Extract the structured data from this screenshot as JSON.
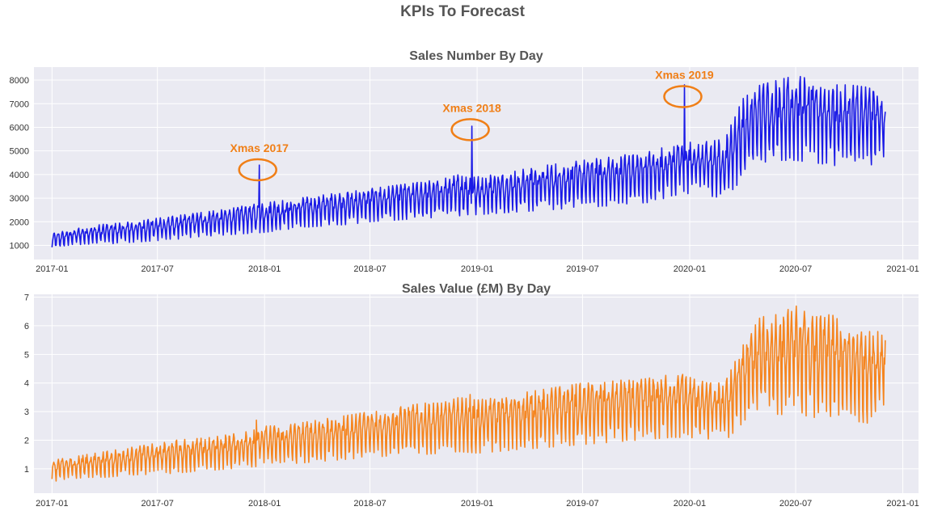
{
  "figure": {
    "title": "KPIs To Forecast",
    "background": "#ffffff",
    "plot_background": "#eaeaf2",
    "grid_color": "#ffffff"
  },
  "chart_data": [
    {
      "type": "line",
      "title": "Sales Number By Day",
      "xlabel": "",
      "ylabel": "",
      "color": "#1a1ae6",
      "grid": true,
      "x_range": [
        "2016-12-01",
        "2021-01-28"
      ],
      "ylim": [
        400,
        8550
      ],
      "x_ticks": [
        "2017-01",
        "2017-07",
        "2018-01",
        "2018-07",
        "2019-01",
        "2019-07",
        "2020-01",
        "2020-07",
        "2021-01"
      ],
      "y_ticks": [
        1000,
        2000,
        3000,
        4000,
        5000,
        6000,
        7000,
        8000
      ],
      "series_resolution": "daily, approximated by weekly minimum/maximum",
      "series": [
        {
          "x": [
            "2017-01-01",
            "2017-02-01",
            "2017-03-01",
            "2017-04-01",
            "2017-05-01",
            "2017-06-01",
            "2017-07-01",
            "2017-08-01",
            "2017-09-01",
            "2017-10-01",
            "2017-11-01",
            "2017-12-01",
            "2018-01-01",
            "2018-02-01",
            "2018-03-01",
            "2018-04-01",
            "2018-05-01",
            "2018-06-01",
            "2018-07-01",
            "2018-08-01",
            "2018-09-01",
            "2018-10-01",
            "2018-11-01",
            "2018-12-01",
            "2019-01-01",
            "2019-02-01",
            "2019-03-01",
            "2019-04-01",
            "2019-05-01",
            "2019-06-01",
            "2019-07-01",
            "2019-08-01",
            "2019-09-01",
            "2019-10-01",
            "2019-11-01",
            "2019-12-01",
            "2020-01-01",
            "2020-02-01",
            "2020-03-01",
            "2020-04-01",
            "2020-05-01",
            "2020-06-01",
            "2020-07-01",
            "2020-08-01",
            "2020-09-01",
            "2020-10-01",
            "2020-11-01",
            "2020-12-02"
          ],
          "low": [
            850,
            1000,
            1050,
            1050,
            1100,
            1150,
            1200,
            1250,
            1350,
            1400,
            1450,
            1500,
            1550,
            1650,
            1750,
            1800,
            1850,
            1900,
            2000,
            2050,
            2100,
            2150,
            2200,
            2250,
            2300,
            2350,
            2400,
            2450,
            2500,
            2550,
            2600,
            2650,
            2700,
            2750,
            2850,
            3100,
            3200,
            3100,
            3000,
            3800,
            4500,
            4600,
            4600,
            4500,
            4400,
            4300,
            4300,
            4800
          ],
          "high": [
            1500,
            1650,
            1800,
            1900,
            1950,
            2050,
            2150,
            2250,
            2350,
            2450,
            2550,
            2700,
            2800,
            2900,
            3000,
            3100,
            3200,
            3300,
            3400,
            3500,
            3600,
            3700,
            3800,
            4000,
            3900,
            4000,
            4100,
            4300,
            4400,
            4500,
            4600,
            4700,
            4800,
            4900,
            5000,
            5300,
            5400,
            5400,
            5500,
            7200,
            7800,
            8000,
            8200,
            8000,
            7800,
            7800,
            7700,
            7400
          ],
          "spikes": [
            {
              "x": "2017-12-23",
              "y": 4400
            },
            {
              "x": "2018-12-23",
              "y": 6050
            },
            {
              "x": "2019-12-23",
              "y": 7800
            }
          ]
        }
      ],
      "annotations": [
        {
          "label": "Xmas 2017",
          "x": "2017-12-23",
          "y": 4200,
          "color": "#f07f17"
        },
        {
          "label": "Xmas 2018",
          "x": "2018-12-23",
          "y": 5900,
          "color": "#f07f17"
        },
        {
          "label": "Xmas 2019",
          "x": "2019-12-23",
          "y": 7300,
          "color": "#f07f17"
        }
      ]
    },
    {
      "type": "line",
      "title": "Sales Value (£M) By Day",
      "xlabel": "",
      "ylabel": "",
      "color": "#f5851f",
      "grid": true,
      "x_range": [
        "2016-12-01",
        "2021-01-28"
      ],
      "ylim": [
        0.15,
        7.1
      ],
      "x_ticks": [
        "2017-01",
        "2017-07",
        "2018-01",
        "2018-07",
        "2019-01",
        "2019-07",
        "2020-01",
        "2020-07",
        "2021-01"
      ],
      "y_ticks": [
        1,
        2,
        3,
        4,
        5,
        6,
        7
      ],
      "series_resolution": "daily, approximated by weekly minimum/maximum",
      "series": [
        {
          "x": [
            "2017-01-01",
            "2017-02-01",
            "2017-03-01",
            "2017-04-01",
            "2017-05-01",
            "2017-06-01",
            "2017-07-01",
            "2017-08-01",
            "2017-09-01",
            "2017-10-01",
            "2017-11-01",
            "2017-12-01",
            "2018-01-01",
            "2018-02-01",
            "2018-03-01",
            "2018-04-01",
            "2018-05-01",
            "2018-06-01",
            "2018-07-01",
            "2018-08-01",
            "2018-09-01",
            "2018-10-01",
            "2018-11-01",
            "2018-12-01",
            "2019-01-01",
            "2019-02-01",
            "2019-03-01",
            "2019-04-01",
            "2019-05-01",
            "2019-06-01",
            "2019-07-01",
            "2019-08-01",
            "2019-09-01",
            "2019-10-01",
            "2019-11-01",
            "2019-12-01",
            "2020-01-01",
            "2020-02-01",
            "2020-03-01",
            "2020-04-01",
            "2020-05-01",
            "2020-06-01",
            "2020-07-01",
            "2020-08-01",
            "2020-09-01",
            "2020-10-01",
            "2020-11-01",
            "2020-12-02"
          ],
          "low": [
            0.55,
            0.65,
            0.7,
            0.7,
            0.75,
            0.8,
            0.8,
            0.85,
            0.9,
            0.95,
            1.0,
            1.05,
            1.1,
            1.15,
            1.2,
            1.25,
            1.3,
            1.35,
            1.4,
            1.45,
            1.5,
            1.5,
            1.55,
            1.6,
            1.55,
            1.6,
            1.65,
            1.7,
            1.75,
            1.8,
            1.85,
            1.9,
            1.95,
            2.0,
            2.05,
            2.1,
            2.1,
            2.0,
            1.95,
            2.6,
            3.0,
            2.9,
            2.9,
            2.8,
            2.7,
            2.7,
            2.6,
            3.3
          ],
          "high": [
            1.3,
            1.4,
            1.5,
            1.6,
            1.7,
            1.8,
            1.9,
            2.0,
            2.05,
            2.1,
            2.2,
            2.3,
            2.5,
            2.5,
            2.6,
            2.7,
            2.8,
            2.9,
            3.0,
            3.1,
            3.2,
            3.3,
            3.3,
            3.5,
            3.4,
            3.5,
            3.6,
            3.7,
            3.8,
            3.9,
            4.0,
            4.0,
            4.1,
            4.1,
            4.2,
            4.3,
            4.2,
            4.0,
            4.0,
            5.3,
            6.3,
            6.4,
            6.7,
            6.3,
            6.4,
            5.9,
            5.8,
            5.8
          ],
          "spikes": [
            {
              "x": "2017-12-18",
              "y": 2.7
            },
            {
              "x": "2018-12-20",
              "y": 3.6
            },
            {
              "x": "2019-12-20",
              "y": 4.3
            }
          ]
        }
      ],
      "annotations": []
    }
  ]
}
